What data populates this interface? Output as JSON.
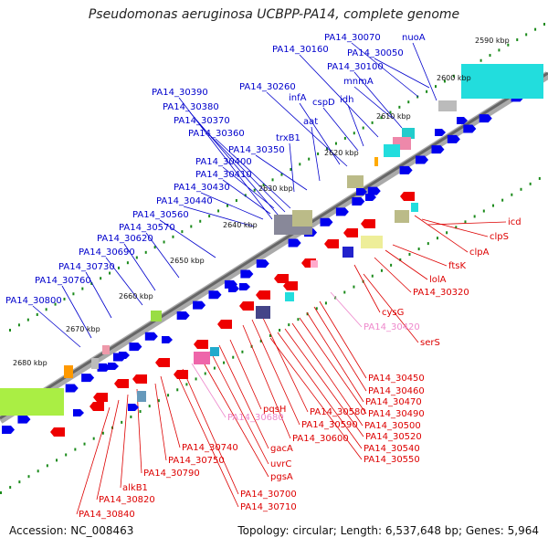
{
  "title": "Pseudomonas aeruginosa UCBPP-PA14, complete genome",
  "footer": {
    "accession": "Accession: NC_008463",
    "stats": "Topology: circular; Length: 6,537,648 bp; Genes: 5,964"
  },
  "colors": {
    "forward_gene": "#0000ee",
    "reverse_gene": "#ee0000",
    "forward_label": "#0000cc",
    "reverse_label": "#dd0000",
    "pink_label": "#ee88cc",
    "backbone": "#888888",
    "tick": "#1a8a1a"
  },
  "kbp_marks": [
    "2590 kbp",
    "2600 kbp",
    "2610 kbp",
    "2620 kbp",
    "2630 kbp",
    "2640 kbp",
    "2650 kbp",
    "2660 kbp",
    "2670 kbp",
    "2680 kbp"
  ],
  "top_labels": [
    "nuoA",
    "PA14_30070",
    "PA14_30050",
    "PA14_30160",
    "PA14_30100",
    "mnmA",
    "PA14_30260",
    "infA",
    "cspD",
    "idh",
    "aat",
    "PA14_30390",
    "PA14_30380",
    "PA14_30370",
    "PA14_30360",
    "trxB1",
    "PA14_30350",
    "PA14_30400",
    "PA14_30410",
    "PA14_30430",
    "PA14_30440",
    "PA14_30560",
    "PA14_30570",
    "PA14_30620",
    "PA14_30690",
    "PA14_30730",
    "PA14_30760",
    "PA14_30800"
  ],
  "bottom_labels": [
    "icd",
    "clpS",
    "clpA",
    "ftsK",
    "lolA",
    "PA14_30320",
    "cysG",
    "PA14_30420",
    "serS",
    "PA14_30450",
    "PA14_30460",
    "PA14_30470",
    "PA14_30490",
    "PA14_30500",
    "PA14_30520",
    "PA14_30540",
    "PA14_30550",
    "PA14_30580",
    "PA14_30590",
    "PA14_30600",
    "pqsH",
    "gacA",
    "uvrC",
    "pgsA",
    "PA14_30680",
    "PA14_30740",
    "PA14_30750",
    "PA14_30790",
    "PA14_30700",
    "PA14_30710",
    "alkB1",
    "PA14_30820",
    "PA14_30840"
  ],
  "pink_labels": [
    "PA14_30420",
    "PA14_30680"
  ]
}
